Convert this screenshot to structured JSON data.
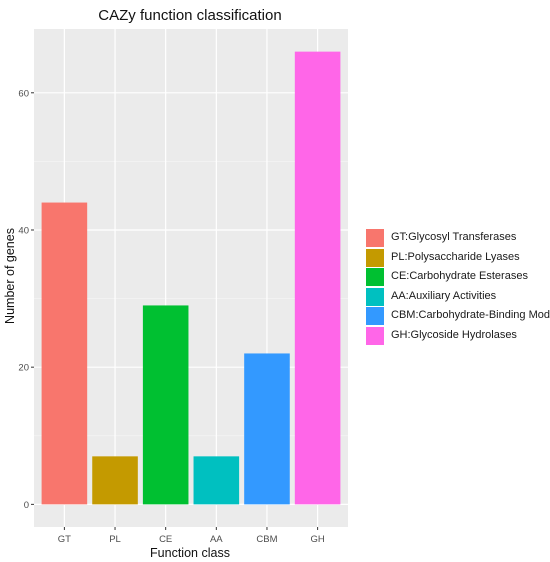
{
  "chart_data": {
    "type": "bar",
    "title": "CAZy function classification",
    "xlabel": "Function class",
    "ylabel": "Number of genes",
    "categories": [
      "GT",
      "PL",
      "CE",
      "AA",
      "CBM",
      "GH"
    ],
    "values": [
      44,
      7,
      29,
      7,
      22,
      66
    ],
    "colors": [
      "#F8766D",
      "#C49A00",
      "#00C031",
      "#00C0C0",
      "#3399FF",
      "#FF66E8"
    ],
    "ylim": [
      -3.3,
      69.3
    ],
    "yticks": [
      0,
      20,
      40,
      60
    ],
    "grid": true,
    "legend_position": "right",
    "legend": [
      {
        "label": "GT:Glycosyl Transferases",
        "color": "#F8766D"
      },
      {
        "label": "PL:Polysaccharide Lyases",
        "color": "#C49A00"
      },
      {
        "label": "CE:Carbohydrate Esterases",
        "color": "#00C031"
      },
      {
        "label": "AA:Auxiliary Activities",
        "color": "#00C0C0"
      },
      {
        "label": "CBM:Carbohydrate-Binding Modules",
        "color": "#3399FF"
      },
      {
        "label": "GH:Glycoside Hydrolases",
        "color": "#FF66E8"
      }
    ]
  }
}
